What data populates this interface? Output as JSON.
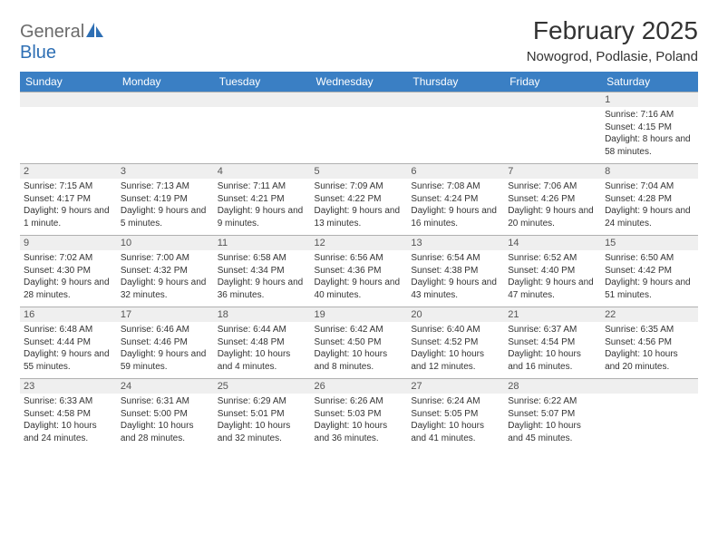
{
  "brand": {
    "part1": "General",
    "part2": "Blue"
  },
  "title": "February 2025",
  "location": "Nowogrod, Podlasie, Poland",
  "colors": {
    "header_bg": "#3a7fc4",
    "header_text": "#ffffff",
    "daynum_bg": "#efefef",
    "border": "#b0b0b0",
    "brand_gray": "#6b6b6b",
    "brand_blue": "#2e6fb4"
  },
  "day_labels": [
    "Sunday",
    "Monday",
    "Tuesday",
    "Wednesday",
    "Thursday",
    "Friday",
    "Saturday"
  ],
  "weeks": [
    {
      "nums": [
        "",
        "",
        "",
        "",
        "",
        "",
        "1"
      ],
      "cells": [
        "",
        "",
        "",
        "",
        "",
        "",
        "Sunrise: 7:16 AM\nSunset: 4:15 PM\nDaylight: 8 hours and 58 minutes."
      ]
    },
    {
      "nums": [
        "2",
        "3",
        "4",
        "5",
        "6",
        "7",
        "8"
      ],
      "cells": [
        "Sunrise: 7:15 AM\nSunset: 4:17 PM\nDaylight: 9 hours and 1 minute.",
        "Sunrise: 7:13 AM\nSunset: 4:19 PM\nDaylight: 9 hours and 5 minutes.",
        "Sunrise: 7:11 AM\nSunset: 4:21 PM\nDaylight: 9 hours and 9 minutes.",
        "Sunrise: 7:09 AM\nSunset: 4:22 PM\nDaylight: 9 hours and 13 minutes.",
        "Sunrise: 7:08 AM\nSunset: 4:24 PM\nDaylight: 9 hours and 16 minutes.",
        "Sunrise: 7:06 AM\nSunset: 4:26 PM\nDaylight: 9 hours and 20 minutes.",
        "Sunrise: 7:04 AM\nSunset: 4:28 PM\nDaylight: 9 hours and 24 minutes."
      ]
    },
    {
      "nums": [
        "9",
        "10",
        "11",
        "12",
        "13",
        "14",
        "15"
      ],
      "cells": [
        "Sunrise: 7:02 AM\nSunset: 4:30 PM\nDaylight: 9 hours and 28 minutes.",
        "Sunrise: 7:00 AM\nSunset: 4:32 PM\nDaylight: 9 hours and 32 minutes.",
        "Sunrise: 6:58 AM\nSunset: 4:34 PM\nDaylight: 9 hours and 36 minutes.",
        "Sunrise: 6:56 AM\nSunset: 4:36 PM\nDaylight: 9 hours and 40 minutes.",
        "Sunrise: 6:54 AM\nSunset: 4:38 PM\nDaylight: 9 hours and 43 minutes.",
        "Sunrise: 6:52 AM\nSunset: 4:40 PM\nDaylight: 9 hours and 47 minutes.",
        "Sunrise: 6:50 AM\nSunset: 4:42 PM\nDaylight: 9 hours and 51 minutes."
      ]
    },
    {
      "nums": [
        "16",
        "17",
        "18",
        "19",
        "20",
        "21",
        "22"
      ],
      "cells": [
        "Sunrise: 6:48 AM\nSunset: 4:44 PM\nDaylight: 9 hours and 55 minutes.",
        "Sunrise: 6:46 AM\nSunset: 4:46 PM\nDaylight: 9 hours and 59 minutes.",
        "Sunrise: 6:44 AM\nSunset: 4:48 PM\nDaylight: 10 hours and 4 minutes.",
        "Sunrise: 6:42 AM\nSunset: 4:50 PM\nDaylight: 10 hours and 8 minutes.",
        "Sunrise: 6:40 AM\nSunset: 4:52 PM\nDaylight: 10 hours and 12 minutes.",
        "Sunrise: 6:37 AM\nSunset: 4:54 PM\nDaylight: 10 hours and 16 minutes.",
        "Sunrise: 6:35 AM\nSunset: 4:56 PM\nDaylight: 10 hours and 20 minutes."
      ]
    },
    {
      "nums": [
        "23",
        "24",
        "25",
        "26",
        "27",
        "28",
        ""
      ],
      "cells": [
        "Sunrise: 6:33 AM\nSunset: 4:58 PM\nDaylight: 10 hours and 24 minutes.",
        "Sunrise: 6:31 AM\nSunset: 5:00 PM\nDaylight: 10 hours and 28 minutes.",
        "Sunrise: 6:29 AM\nSunset: 5:01 PM\nDaylight: 10 hours and 32 minutes.",
        "Sunrise: 6:26 AM\nSunset: 5:03 PM\nDaylight: 10 hours and 36 minutes.",
        "Sunrise: 6:24 AM\nSunset: 5:05 PM\nDaylight: 10 hours and 41 minutes.",
        "Sunrise: 6:22 AM\nSunset: 5:07 PM\nDaylight: 10 hours and 45 minutes.",
        ""
      ]
    }
  ]
}
